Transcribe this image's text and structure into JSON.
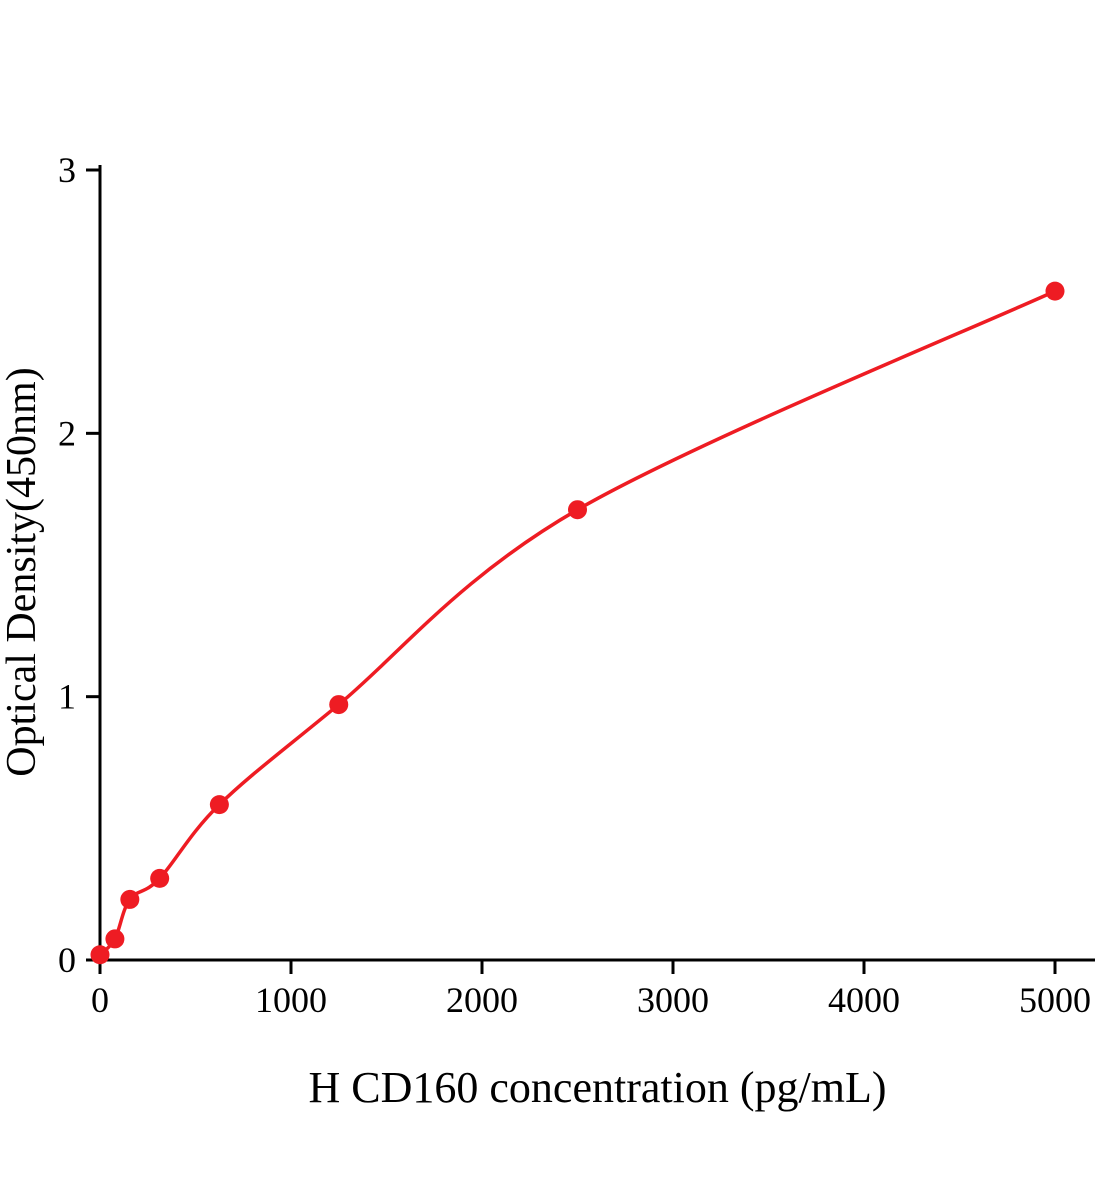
{
  "chart": {
    "xlabel": "H CD160 concentration (pg/mL)",
    "ylabel": "Optical Density(450nm)"
  },
  "chart_data": {
    "type": "scatter",
    "title": "",
    "xlabel": "H CD160 concentration (pg/mL)",
    "ylabel": "Optical Density(450nm)",
    "x": [
      0,
      78.1,
      156.2,
      312.5,
      625,
      1250,
      2500,
      5000
    ],
    "y": [
      0.02,
      0.08,
      0.23,
      0.31,
      0.59,
      0.97,
      1.71,
      2.54
    ],
    "fit_curve": true,
    "xlim": [
      0,
      5200
    ],
    "ylim": [
      0,
      3
    ],
    "x_ticks": [
      0,
      1000,
      2000,
      3000,
      4000,
      5000
    ],
    "y_ticks": [
      0,
      1,
      2,
      3
    ],
    "grid": false,
    "legend": "none",
    "curve_color": "#ee1c23",
    "point_color": "#ee1c23",
    "axis_color": "#000000"
  }
}
